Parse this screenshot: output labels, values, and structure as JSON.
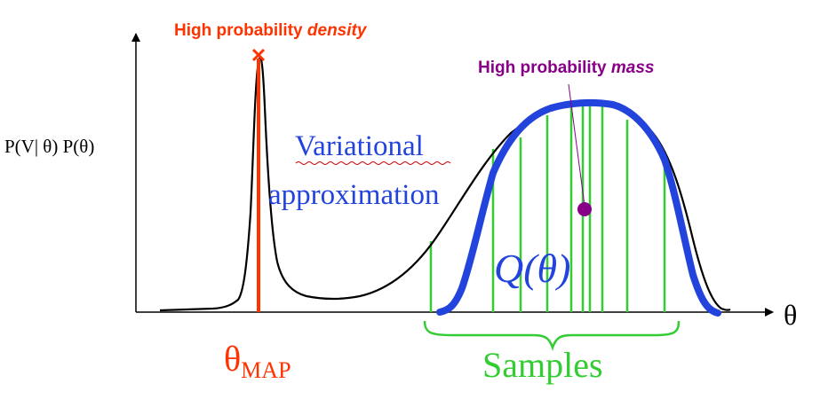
{
  "labels": {
    "ylabel": "P(V| θ) P(θ)",
    "xlabel": "θ",
    "density_prefix": "High probability ",
    "density_word": "density",
    "mass_prefix": "High probability ",
    "mass_word": "mass",
    "variational_line1": "Variational",
    "variational_line2": "approximation",
    "q_theta": "Q(θ)",
    "theta_map_symbol": "θ",
    "theta_map_sub": "MAP",
    "samples": "Samples"
  },
  "colors": {
    "density_curve": "#000000",
    "map": "#ff3300",
    "mass": "#880088",
    "variational": "#2244dd",
    "samples": "#33cc33"
  }
}
